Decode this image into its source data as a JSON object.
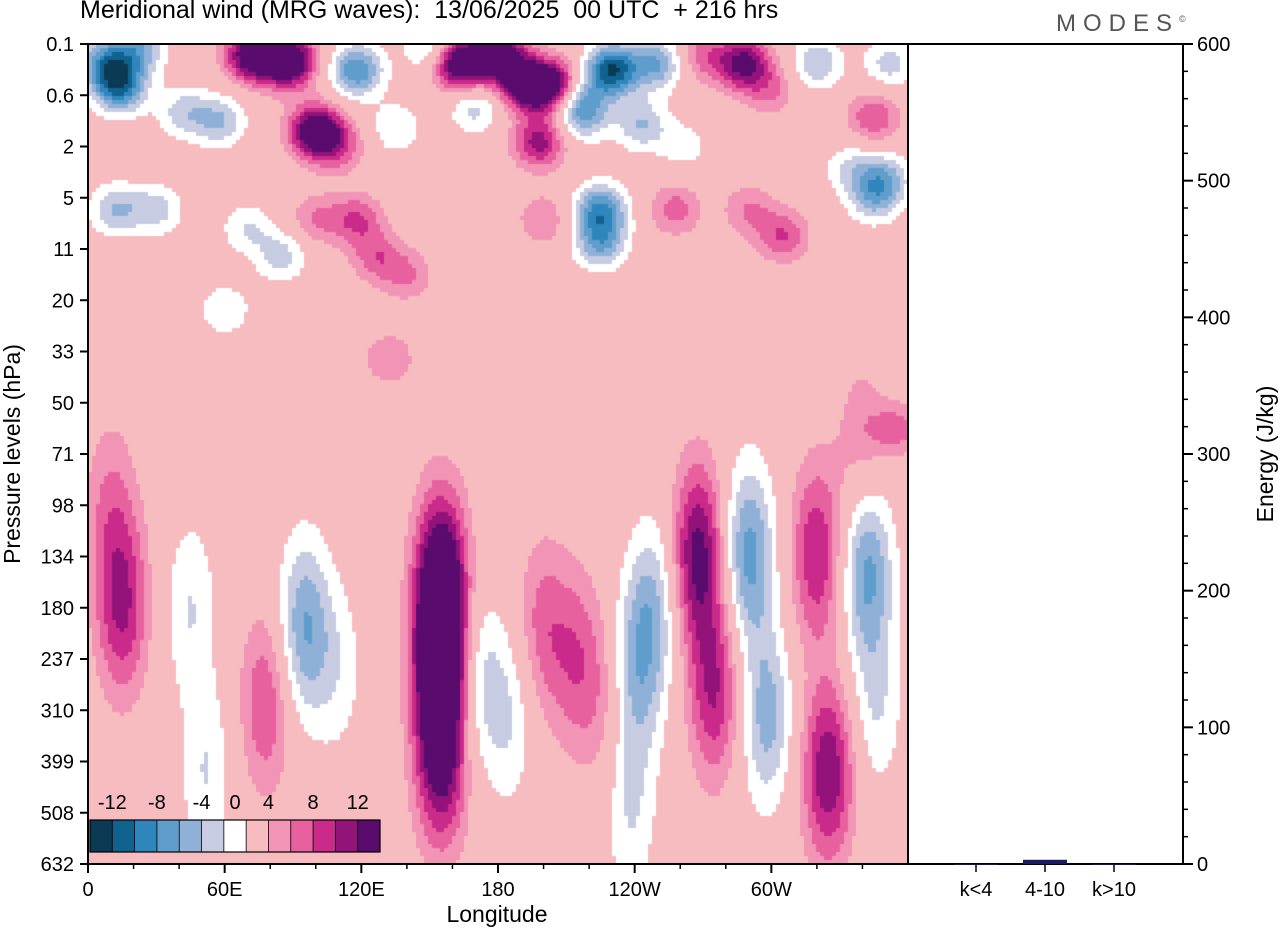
{
  "chart_data": {
    "type": "heatmap",
    "title": "Meridional wind (MRG waves):  13/06/2025  00 UTC  + 216 hrs",
    "xlabel": "Longitude",
    "ylabel": "Pressure levels (hPa)",
    "x_ticks": [
      "0",
      "60E",
      "120E",
      "180",
      "120W",
      "60W"
    ],
    "y_ticks": [
      "0.1",
      "0.6",
      "2",
      "5",
      "11",
      "20",
      "33",
      "50",
      "71",
      "98",
      "134",
      "180",
      "237",
      "310",
      "399",
      "508",
      "632"
    ],
    "colorbar": {
      "tick_labels": [
        "-12",
        "-8",
        "-4",
        "0",
        "4",
        "8",
        "12"
      ],
      "levels": [
        -14,
        -12,
        -10,
        -8,
        -6,
        -4,
        -2,
        2,
        4,
        6,
        8,
        10,
        12,
        14
      ],
      "colors": [
        "#0b3a55",
        "#10628f",
        "#2f86bd",
        "#5e9dcc",
        "#8fb1d8",
        "#c7cce2",
        "#ffffff",
        "#f6bcbf",
        "#f294b5",
        "#e8619f",
        "#ca2a89",
        "#93137a",
        "#5a0b6e"
      ]
    },
    "energy_panel": {
      "ylabel": "Energy (J/kg)",
      "y_ticks": [
        "0",
        "100",
        "200",
        "300",
        "400",
        "500",
        "600"
      ],
      "ylim": [
        0,
        600
      ],
      "categories": [
        "k<4",
        "4-10",
        "k>10"
      ],
      "values": [
        0,
        2,
        0
      ],
      "bar_color": "#1a1a5e"
    },
    "contour_blobs": [
      {
        "lon": 14,
        "lev": 0.45,
        "v": -11
      },
      {
        "lon": 8,
        "lev": 0.2,
        "v": -9
      },
      {
        "lon": 22,
        "lev": 0.12,
        "v": -7
      },
      {
        "lon": 42,
        "lev": 0.9,
        "v": -5
      },
      {
        "lon": 58,
        "lev": 1.1,
        "v": -6
      },
      {
        "lon": 72,
        "lev": 0.15,
        "v": 13
      },
      {
        "lon": 88,
        "lev": 0.18,
        "v": 15
      },
      {
        "lon": 100,
        "lev": 1.4,
        "v": 14
      },
      {
        "lon": 118,
        "lev": 0.25,
        "v": -10
      },
      {
        "lon": 110,
        "lev": 2.0,
        "v": 5
      },
      {
        "lon": 135,
        "lev": 1.3,
        "v": -4
      },
      {
        "lon": 150,
        "lev": 0.12,
        "v": -5
      },
      {
        "lon": 163,
        "lev": 0.2,
        "v": 14
      },
      {
        "lon": 180,
        "lev": 0.15,
        "v": 13
      },
      {
        "lon": 192,
        "lev": 0.4,
        "v": 13
      },
      {
        "lon": 205,
        "lev": 0.45,
        "v": 12
      },
      {
        "lon": 170,
        "lev": 0.8,
        "v": -5
      },
      {
        "lon": 198,
        "lev": 1.8,
        "v": 9
      },
      {
        "lon": 218,
        "lev": 1.0,
        "v": -5
      },
      {
        "lon": 230,
        "lev": 0.25,
        "v": -14
      },
      {
        "lon": 250,
        "lev": 0.2,
        "v": -8
      },
      {
        "lon": 215,
        "lev": 0.7,
        "v": -7
      },
      {
        "lon": 243,
        "lev": 1.2,
        "v": -6
      },
      {
        "lon": 262,
        "lev": 2.0,
        "v": -3
      },
      {
        "lon": 270,
        "lev": 0.15,
        "v": 5
      },
      {
        "lon": 288,
        "lev": 0.2,
        "v": 11
      },
      {
        "lon": 300,
        "lev": 0.5,
        "v": 4
      },
      {
        "lon": 320,
        "lev": 0.2,
        "v": -6
      },
      {
        "lon": 345,
        "lev": 1.0,
        "v": 6
      },
      {
        "lon": 352,
        "lev": 0.2,
        "v": -5
      },
      {
        "lon": 350,
        "lev": 3.5,
        "v": -6
      },
      {
        "lon": 335,
        "lev": 3.0,
        "v": -4
      },
      {
        "lon": 12,
        "lev": 6,
        "v": -6
      },
      {
        "lon": 30,
        "lev": 6,
        "v": -5
      },
      {
        "lon": 70,
        "lev": 8,
        "v": -4
      },
      {
        "lon": 100,
        "lev": 7,
        "v": 4
      },
      {
        "lon": 118,
        "lev": 7,
        "v": 6
      },
      {
        "lon": 127,
        "lev": 12,
        "v": 5
      },
      {
        "lon": 140,
        "lev": 15,
        "v": 4
      },
      {
        "lon": 200,
        "lev": 7,
        "v": 4
      },
      {
        "lon": 225,
        "lev": 6,
        "v": -10
      },
      {
        "lon": 225,
        "lev": 10,
        "v": -8
      },
      {
        "lon": 258,
        "lev": 6,
        "v": 5
      },
      {
        "lon": 290,
        "lev": 6,
        "v": 4
      },
      {
        "lon": 305,
        "lev": 9,
        "v": 6
      },
      {
        "lon": 345,
        "lev": 5,
        "v": -6
      },
      {
        "lon": 60,
        "lev": 22,
        "v": -4
      },
      {
        "lon": 85,
        "lev": 12,
        "v": -5
      },
      {
        "lon": 132,
        "lev": 35,
        "v": 4
      },
      {
        "lon": 355,
        "lev": 60,
        "v": 5
      },
      {
        "lon": 340,
        "lev": 70,
        "v": 4
      },
      {
        "lon": 15,
        "lev": 180,
        "v": 8
      },
      {
        "lon": 10,
        "lev": 100,
        "v": 4
      },
      {
        "lon": 45,
        "lev": 180,
        "v": -4
      },
      {
        "lon": 52,
        "lev": 420,
        "v": -4
      },
      {
        "lon": 78,
        "lev": 300,
        "v": 6
      },
      {
        "lon": 95,
        "lev": 200,
        "v": -8
      },
      {
        "lon": 110,
        "lev": 250,
        "v": -3
      },
      {
        "lon": 155,
        "lev": 240,
        "v": 16
      },
      {
        "lon": 155,
        "lev": 150,
        "v": 12
      },
      {
        "lon": 155,
        "lev": 400,
        "v": 10
      },
      {
        "lon": 170,
        "lev": 260,
        "v": -5
      },
      {
        "lon": 185,
        "lev": 320,
        "v": -4
      },
      {
        "lon": 200,
        "lev": 200,
        "v": 5
      },
      {
        "lon": 215,
        "lev": 240,
        "v": 5
      },
      {
        "lon": 228,
        "lev": 300,
        "v": 3
      },
      {
        "lon": 240,
        "lev": 260,
        "v": -6
      },
      {
        "lon": 248,
        "lev": 180,
        "v": -6
      },
      {
        "lon": 268,
        "lev": 132,
        "v": 11
      },
      {
        "lon": 275,
        "lev": 280,
        "v": 8
      },
      {
        "lon": 290,
        "lev": 132,
        "v": -9
      },
      {
        "lon": 298,
        "lev": 320,
        "v": -7
      },
      {
        "lon": 320,
        "lev": 132,
        "v": 8
      },
      {
        "lon": 325,
        "lev": 420,
        "v": 10
      },
      {
        "lon": 342,
        "lev": 140,
        "v": -9
      },
      {
        "lon": 346,
        "lev": 300,
        "v": -4
      },
      {
        "lon": 238,
        "lev": 500,
        "v": -4
      }
    ]
  }
}
